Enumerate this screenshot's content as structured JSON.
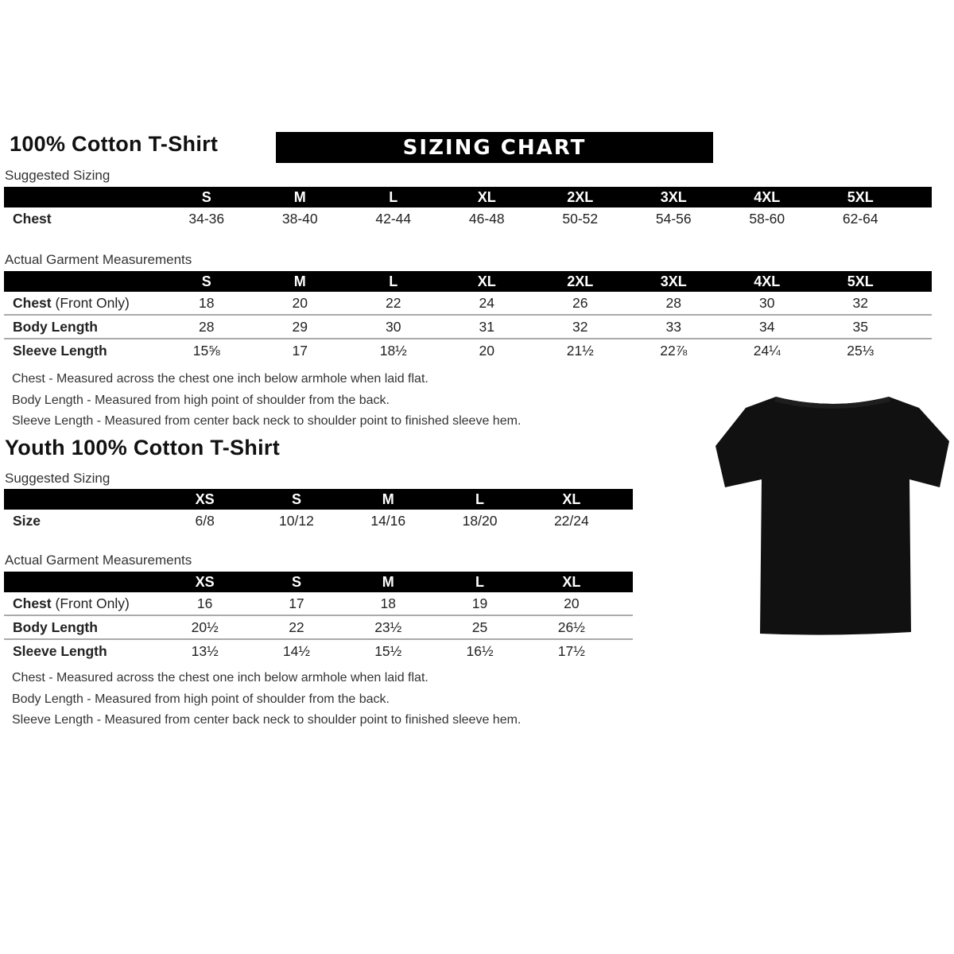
{
  "adult": {
    "title": "100% Cotton T-Shirt",
    "banner": "SIZING CHART",
    "suggested": {
      "label": "Suggested Sizing",
      "sizes": [
        "S",
        "M",
        "L",
        "XL",
        "2XL",
        "3XL",
        "4XL",
        "5XL"
      ],
      "rows": [
        {
          "label": "Chest",
          "label_extra": "",
          "values": [
            "34-36",
            "38-40",
            "42-44",
            "46-48",
            "50-52",
            "54-56",
            "58-60",
            "62-64"
          ]
        }
      ]
    },
    "actual": {
      "label": "Actual Garment Measurements",
      "sizes": [
        "S",
        "M",
        "L",
        "XL",
        "2XL",
        "3XL",
        "4XL",
        "5XL"
      ],
      "rows": [
        {
          "label": "Chest",
          "label_extra": " (Front Only)",
          "values": [
            "18",
            "20",
            "22",
            "24",
            "26",
            "28",
            "30",
            "32"
          ]
        },
        {
          "label": "Body Length",
          "label_extra": "",
          "values": [
            "28",
            "29",
            "30",
            "31",
            "32",
            "33",
            "34",
            "35"
          ]
        },
        {
          "label": "Sleeve Length",
          "label_extra": "",
          "values": [
            "15⅝",
            "17",
            "18½",
            "20",
            "21½",
            "22⅞",
            "24¼",
            "25⅓"
          ]
        }
      ]
    },
    "notes": [
      "Chest - Measured across the chest one inch below armhole when laid flat.",
      "Body Length - Measured from high point of shoulder from the back.",
      "Sleeve Length - Measured from center back neck to shoulder point to finished sleeve hem."
    ]
  },
  "youth": {
    "title": "Youth 100% Cotton T-Shirt",
    "suggested": {
      "label": "Suggested Sizing",
      "sizes": [
        "XS",
        "S",
        "M",
        "L",
        "XL"
      ],
      "rows": [
        {
          "label": "Size",
          "label_extra": "",
          "values": [
            "6/8",
            "10/12",
            "14/16",
            "18/20",
            "22/24"
          ]
        }
      ]
    },
    "actual": {
      "label": "Actual Garment Measurements",
      "sizes": [
        "XS",
        "S",
        "M",
        "L",
        "XL"
      ],
      "rows": [
        {
          "label": "Chest",
          "label_extra": " (Front Only)",
          "values": [
            "16",
            "17",
            "18",
            "19",
            "20"
          ]
        },
        {
          "label": "Body Length",
          "label_extra": "",
          "values": [
            "20½",
            "22",
            "23½",
            "25",
            "26½"
          ]
        },
        {
          "label": "Sleeve Length",
          "label_extra": "",
          "values": [
            "13½",
            "14½",
            "15½",
            "16½",
            "17½"
          ]
        }
      ]
    },
    "notes": [
      "Chest - Measured across the chest one inch below armhole when laid flat.",
      "Body Length - Measured from high point of shoulder from the back.",
      "Sleeve Length - Measured from center back neck to shoulder point to finished sleeve hem."
    ]
  },
  "image": {
    "icon": "black-tshirt-icon",
    "color": "#111111"
  }
}
